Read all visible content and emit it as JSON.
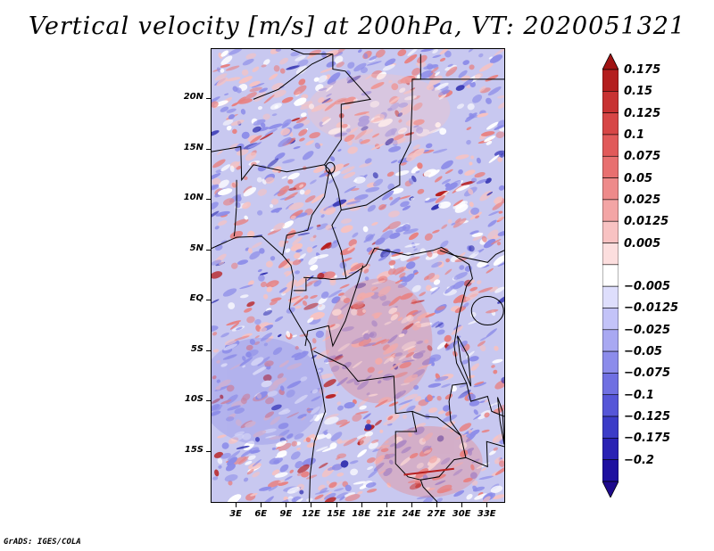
{
  "title": "Vertical velocity [m/s] at 200hPa, VT: 2020051321",
  "credit": "GrADS: IGES/COLA",
  "map": {
    "lat_range": [
      -20,
      25
    ],
    "lon_range": [
      0,
      35
    ],
    "lat_labels": [
      {
        "value": 20,
        "text": "20N"
      },
      {
        "value": 15,
        "text": "15N"
      },
      {
        "value": 10,
        "text": "10N"
      },
      {
        "value": 5,
        "text": "5N"
      },
      {
        "value": 0,
        "text": "EQ"
      },
      {
        "value": -5,
        "text": "5S"
      },
      {
        "value": -10,
        "text": "10S"
      },
      {
        "value": -15,
        "text": "15S"
      }
    ],
    "lon_labels": [
      {
        "value": 3,
        "text": "3E"
      },
      {
        "value": 6,
        "text": "6E"
      },
      {
        "value": 9,
        "text": "9E"
      },
      {
        "value": 12,
        "text": "12E"
      },
      {
        "value": 15,
        "text": "15E"
      },
      {
        "value": 18,
        "text": "18E"
      },
      {
        "value": 21,
        "text": "21E"
      },
      {
        "value": 24,
        "text": "24E"
      },
      {
        "value": 27,
        "text": "27E"
      },
      {
        "value": 30,
        "text": "30E"
      },
      {
        "value": 33,
        "text": "33E"
      }
    ]
  },
  "colorbar": {
    "extend": "both",
    "top_arrow_color": "#a01414",
    "bottom_arrow_color": "#1e0a8c",
    "levels": [
      {
        "label": "0.175",
        "color": "#b41e1e"
      },
      {
        "label": "0.15",
        "color": "#c83232"
      },
      {
        "label": "0.125",
        "color": "#d74646"
      },
      {
        "label": "0.1",
        "color": "#e15a5a"
      },
      {
        "label": "0.075",
        "color": "#e87070"
      },
      {
        "label": "0.05",
        "color": "#ee8a8a"
      },
      {
        "label": "0.025",
        "color": "#f3a5a5"
      },
      {
        "label": "0.0125",
        "color": "#f8c2c2"
      },
      {
        "label": "0.005",
        "color": "#fcdede"
      },
      {
        "label": "",
        "color": "#ffffff"
      },
      {
        "label": "−0.005",
        "color": "#dedefc"
      },
      {
        "label": "−0.0125",
        "color": "#c3c3f8"
      },
      {
        "label": "−0.025",
        "color": "#a8a8f2"
      },
      {
        "label": "−0.05",
        "color": "#8c8ceb"
      },
      {
        "label": "−0.075",
        "color": "#7070e2"
      },
      {
        "label": "−0.1",
        "color": "#5656d8"
      },
      {
        "label": "−0.125",
        "color": "#3c3cc8"
      },
      {
        "label": "−0.175",
        "color": "#2a22b4"
      },
      {
        "label": "−0.2",
        "color": "#1e10a0"
      }
    ]
  },
  "field_colors": {
    "background": "#c8c8f0",
    "strong_red": "#b82020",
    "red": "#e88080",
    "pink": "#f6c2c2",
    "white": "#ffffff",
    "blue": "#8c8ce8",
    "strong_blue": "#3030b0"
  }
}
